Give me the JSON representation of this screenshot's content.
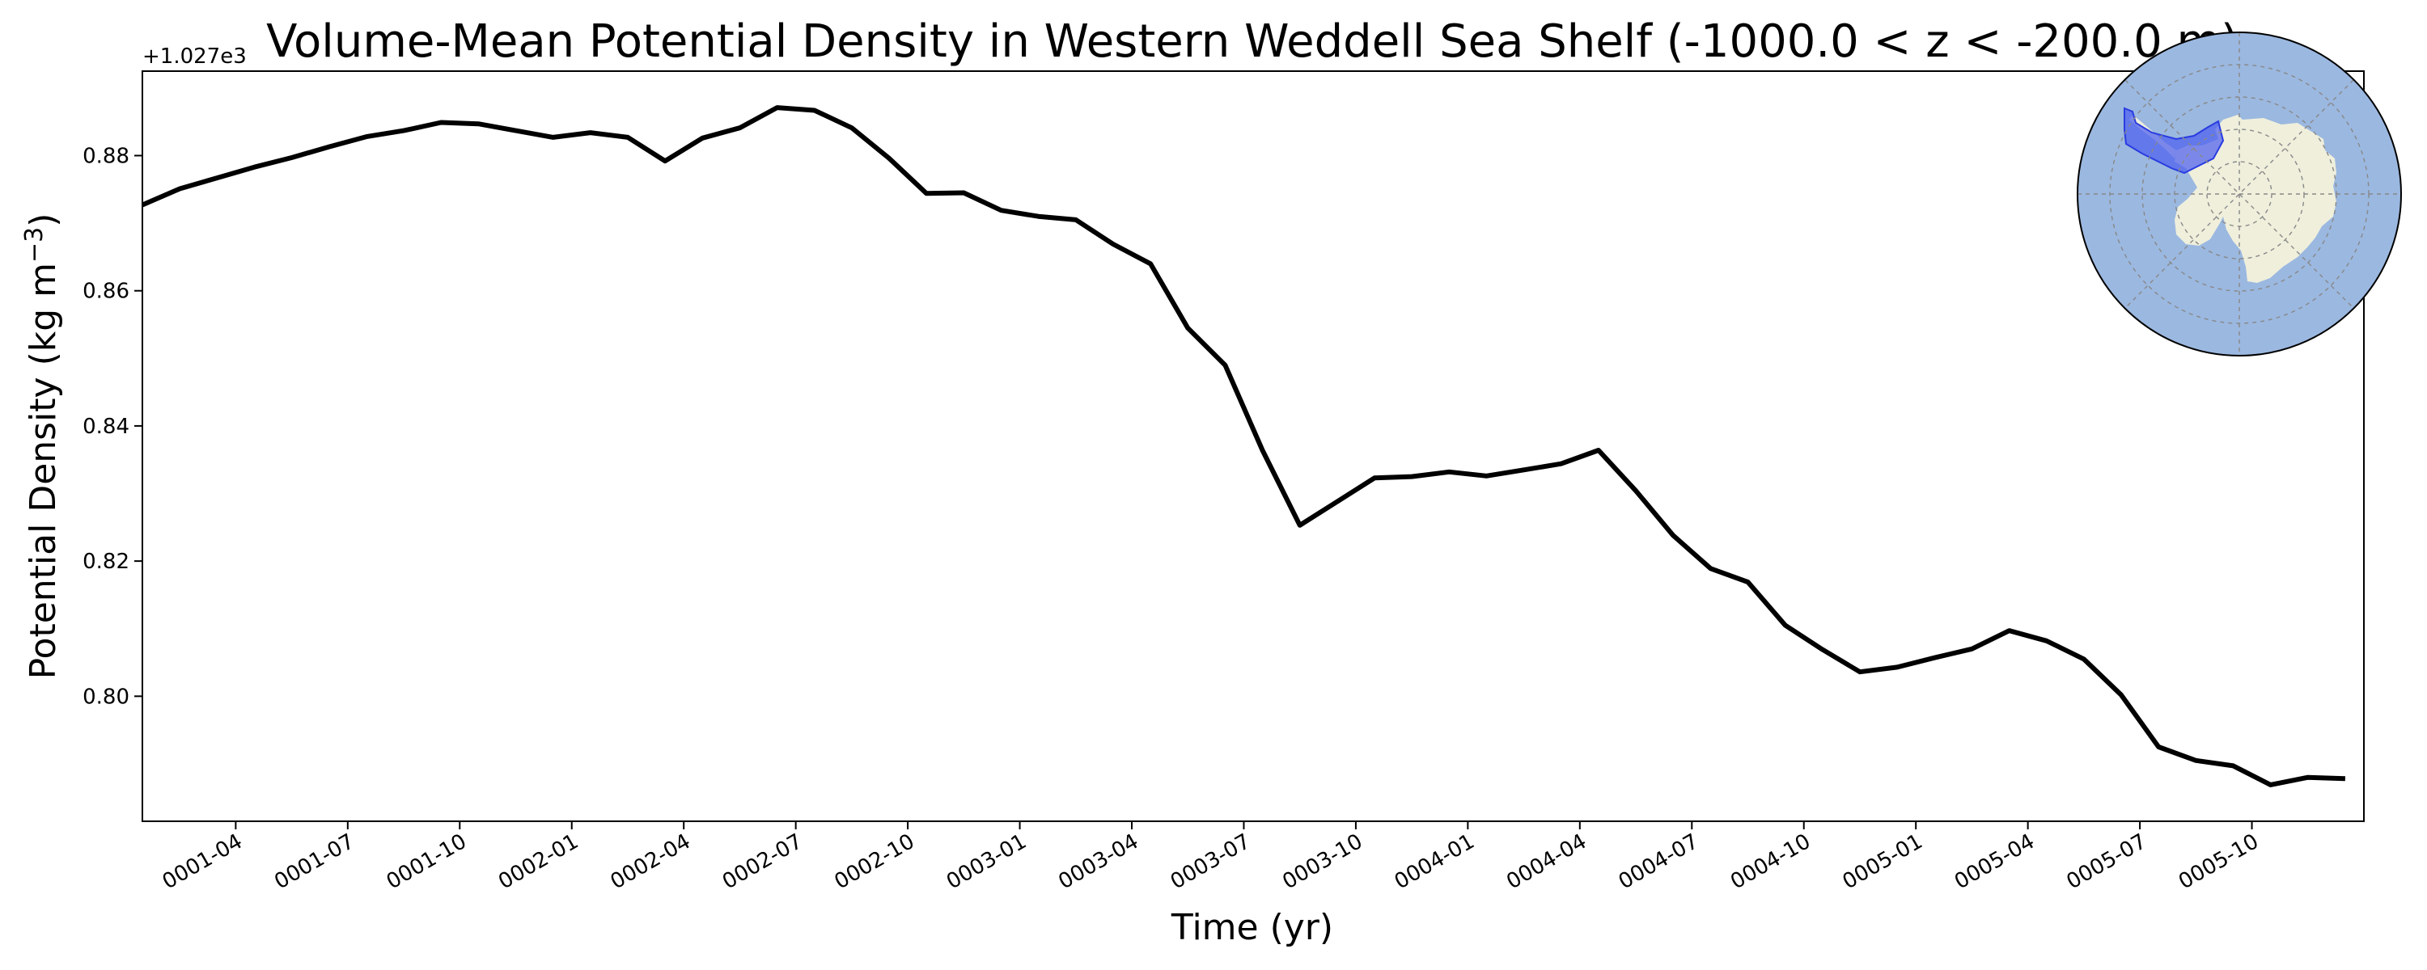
{
  "chart_data": {
    "type": "line",
    "title": "Volume-Mean Potential Density in Western Weddell Sea Shelf (-1000.0 < z < -200.0 m)",
    "xlabel": "Time (yr)",
    "ylabel_main": "Potential Density (kg m",
    "ylabel_exp": "−3",
    "ylabel_close": ")",
    "y_offset_label": "+1.027e3",
    "x_range_months": [
      0.5,
      60
    ],
    "ylim": [
      0.7815,
      0.8925
    ],
    "x_ticks": [
      {
        "m": 3,
        "label": "0001-04"
      },
      {
        "m": 6,
        "label": "0001-07"
      },
      {
        "m": 9,
        "label": "0001-10"
      },
      {
        "m": 12,
        "label": "0002-01"
      },
      {
        "m": 15,
        "label": "0002-04"
      },
      {
        "m": 18,
        "label": "0002-07"
      },
      {
        "m": 21,
        "label": "0002-10"
      },
      {
        "m": 24,
        "label": "0003-01"
      },
      {
        "m": 27,
        "label": "0003-04"
      },
      {
        "m": 30,
        "label": "0003-07"
      },
      {
        "m": 33,
        "label": "0003-10"
      },
      {
        "m": 36,
        "label": "0004-01"
      },
      {
        "m": 39,
        "label": "0004-04"
      },
      {
        "m": 42,
        "label": "0004-07"
      },
      {
        "m": 45,
        "label": "0004-10"
      },
      {
        "m": 48,
        "label": "0005-01"
      },
      {
        "m": 51,
        "label": "0005-04"
      },
      {
        "m": 54,
        "label": "0005-07"
      },
      {
        "m": 57,
        "label": "0005-10"
      }
    ],
    "y_ticks": [
      {
        "v": 0.8,
        "label": "0.80"
      },
      {
        "v": 0.82,
        "label": "0.82"
      },
      {
        "v": 0.84,
        "label": "0.84"
      },
      {
        "v": 0.86,
        "label": "0.86"
      },
      {
        "v": 0.88,
        "label": "0.88"
      }
    ],
    "series": [
      {
        "color": "#000000",
        "x": [
          0.5,
          1.5,
          2.5,
          3.5,
          4.5,
          5.5,
          6.5,
          7.5,
          8.5,
          9.5,
          10.5,
          11.5,
          12.5,
          13.5,
          14.5,
          15.5,
          16.5,
          17.5,
          18.5,
          19.5,
          20.5,
          21.5,
          22.5,
          23.5,
          24.5,
          25.5,
          26.5,
          27.5,
          28.5,
          29.5,
          30.5,
          31.5,
          32.5,
          33.5,
          34.5,
          35.5,
          36.5,
          37.5,
          38.5,
          39.5,
          40.5,
          41.5,
          42.5,
          43.5,
          44.5,
          45.5,
          46.5,
          47.5,
          48.5,
          49.5,
          50.5,
          51.5,
          52.5,
          53.5,
          54.5,
          55.5,
          56.5,
          57.5,
          58.5,
          59.5
        ],
        "y": [
          0.8727,
          0.8751,
          0.8767,
          0.8783,
          0.8797,
          0.8813,
          0.8828,
          0.8837,
          0.8849,
          0.8847,
          0.8837,
          0.8827,
          0.8834,
          0.8827,
          0.8792,
          0.8826,
          0.8841,
          0.8871,
          0.8867,
          0.8841,
          0.8796,
          0.8744,
          0.8745,
          0.8719,
          0.871,
          0.8705,
          0.8669,
          0.864,
          0.8545,
          0.849,
          0.8364,
          0.8253,
          0.8288,
          0.8323,
          0.8325,
          0.8332,
          0.8326,
          0.8335,
          0.8344,
          0.8364,
          0.8304,
          0.8238,
          0.8189,
          0.8169,
          0.8105,
          0.8069,
          0.8036,
          0.8043,
          0.8057,
          0.807,
          0.8097,
          0.8082,
          0.8055,
          0.8002,
          0.7925,
          0.7905,
          0.7897,
          0.7869,
          0.788,
          0.7878
        ]
      }
    ],
    "inset_map": {
      "type": "polar-stereographic-map",
      "region": "Western Weddell Sea Shelf",
      "ocean_color": "#9bb8e0",
      "land_color": "#efefdc",
      "region_color": "#4a5cf0",
      "grid": true
    }
  }
}
